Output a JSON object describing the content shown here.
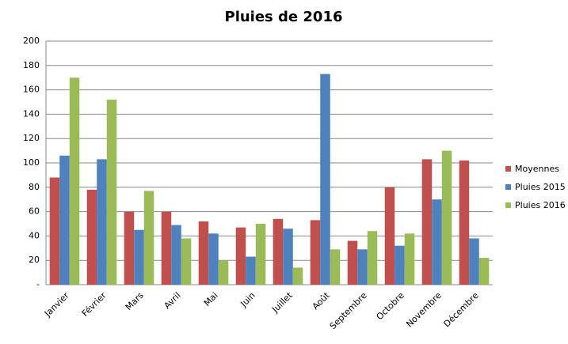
{
  "chart_data": {
    "type": "bar",
    "title": "Pluies de 2016",
    "categories": [
      "Janvier",
      "Février",
      "Mars",
      "Avril",
      "Mai",
      "Juin",
      "Juillet",
      "Août",
      "Septembre",
      "Octobre",
      "Novembre",
      "Décembre"
    ],
    "series": [
      {
        "name": "Moyennes",
        "color": "#c0504d",
        "values": [
          88,
          78,
          60,
          60,
          52,
          47,
          54,
          53,
          36,
          80,
          103,
          102
        ]
      },
      {
        "name": "Pluies 2015",
        "color": "#4f81bd",
        "values": [
          106,
          103,
          45,
          49,
          42,
          23,
          46,
          173,
          29,
          32,
          70,
          38
        ]
      },
      {
        "name": "Pluies 2016",
        "color": "#9bbb59",
        "values": [
          170,
          152,
          77,
          38,
          20,
          50,
          14,
          29,
          44,
          42,
          110,
          22
        ]
      }
    ],
    "ylim": [
      0,
      200
    ],
    "yticks": [
      {
        "value": 0,
        "label": "-"
      },
      20,
      40,
      60,
      80,
      100,
      120,
      140,
      160,
      180,
      200
    ],
    "grid": true,
    "legend": "right"
  }
}
